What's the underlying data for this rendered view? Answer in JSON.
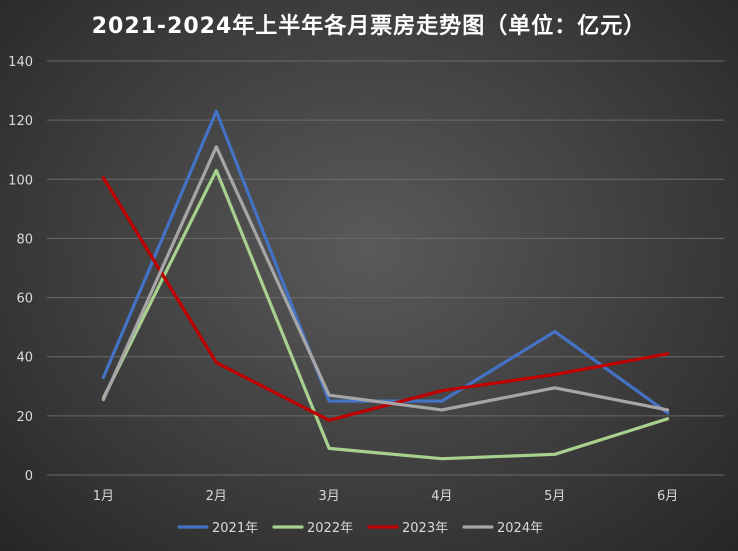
{
  "chart_data": {
    "type": "line",
    "title": "2021-2024年上半年各月票房走势图（单位：亿元）",
    "categories": [
      "1月",
      "2月",
      "3月",
      "4月",
      "5月",
      "6月"
    ],
    "ylim": [
      0,
      140
    ],
    "yticks": [
      0,
      20,
      40,
      60,
      80,
      100,
      120,
      140
    ],
    "grid": true,
    "legend_position": "bottom",
    "series": [
      {
        "name": "2021年",
        "color": "#4472c4",
        "values": [
          33,
          123,
          25,
          25,
          48.5,
          21
        ]
      },
      {
        "name": "2022年",
        "color": "#a9d18e",
        "values": [
          26,
          103,
          9,
          5.5,
          7,
          19
        ]
      },
      {
        "name": "2023年",
        "color": "#c00000",
        "values": [
          100.5,
          38,
          18.5,
          28.5,
          34,
          41
        ]
      },
      {
        "name": "2024年",
        "color": "#a6a6a6",
        "values": [
          25.5,
          111,
          27,
          22,
          29.5,
          22
        ]
      }
    ]
  }
}
